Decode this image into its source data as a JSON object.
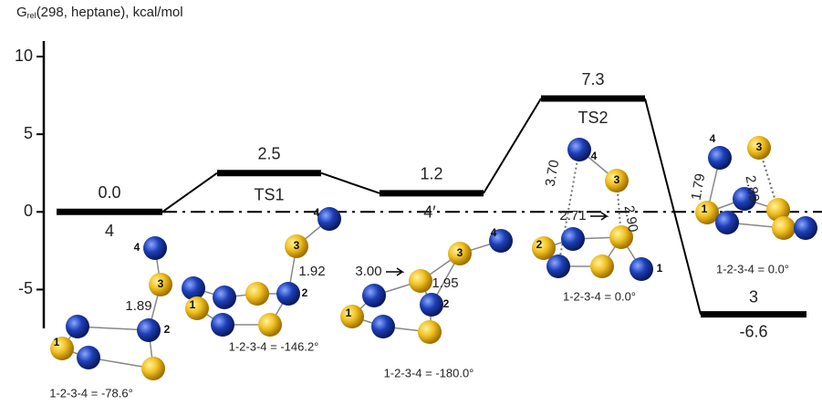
{
  "chart_data": {
    "type": "energy-levels",
    "y_label": {
      "symbol": "G",
      "subscript": "rel",
      "text": "(298, heptane), kcal/mol"
    },
    "categories": [
      "4",
      "TS1",
      "4′",
      "TS2",
      "3"
    ],
    "values": [
      0,
      2.5,
      1.2,
      7.3,
      -6.6
    ],
    "value_labels": [
      "0.0",
      "2.5",
      "1.2",
      "7.3",
      "-6.6"
    ],
    "color": "#000000",
    "ylim": [
      -7.5,
      11
    ],
    "yticks": [
      -5,
      0,
      5,
      10
    ],
    "zero_line": true,
    "structures": [
      {
        "atom_labels": [
          "1",
          "2",
          "3",
          "4"
        ],
        "distances": [
          "1.89"
        ],
        "dihedral": "1-2-3-4 = -78.6°"
      },
      {
        "atom_labels": [
          "1",
          "2",
          "3",
          "4"
        ],
        "distances": [
          "1.92"
        ],
        "dihedral": "1-2-3-4 = -146.2°"
      },
      {
        "atom_labels": [
          "1",
          "2",
          "3",
          "4"
        ],
        "distances": [
          "3.00",
          "1.95"
        ],
        "dihedral": "1-2-3-4 = -180.0°"
      },
      {
        "atom_labels": [
          "1",
          "2",
          "3",
          "4"
        ],
        "distances": [
          "3.70",
          "2.71",
          "2.90"
        ],
        "dihedral": "1-2-3-4 = 0.0°"
      },
      {
        "atom_labels": [
          "1",
          "3",
          "4"
        ],
        "distances": [
          "1.79",
          "2.89"
        ],
        "dihedral": "1-2-3-4 = 0.0°"
      }
    ]
  }
}
